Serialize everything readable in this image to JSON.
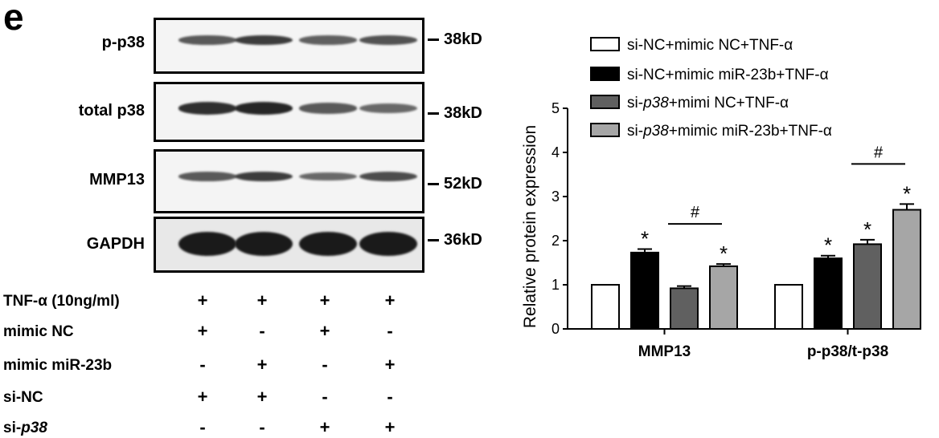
{
  "panel_label": "e",
  "blots": [
    {
      "name": "p-p38",
      "kd": "38kD",
      "intensities": [
        0.55,
        0.75,
        0.5,
        0.6
      ]
    },
    {
      "name": "total p38",
      "kd": "38kD",
      "intensities": [
        0.85,
        0.9,
        0.55,
        0.45
      ]
    },
    {
      "name": "MMP13",
      "kd": "52kD",
      "intensities": [
        0.55,
        0.75,
        0.45,
        0.65
      ]
    },
    {
      "name": "GAPDH",
      "kd": "36kD",
      "intensities": [
        1.0,
        1.0,
        1.0,
        1.0
      ]
    }
  ],
  "conditions": [
    {
      "label": "TNF-α (10ng/ml)",
      "values": [
        "+",
        "+",
        "+",
        "+"
      ]
    },
    {
      "label": "mimic NC",
      "values": [
        "+",
        "-",
        "+",
        "-"
      ]
    },
    {
      "label": "mimic miR-23b",
      "values": [
        "-",
        "+",
        "-",
        "+"
      ]
    },
    {
      "label": "si-NC",
      "values": [
        "+",
        "+",
        "-",
        "-"
      ]
    },
    {
      "label_prefix": "si-",
      "label_italic": "p38",
      "values": [
        "-",
        "-",
        "+",
        "+"
      ]
    }
  ],
  "chart_data": {
    "type": "bar",
    "categories": [
      "MMP13",
      "p-p38/t-p38"
    ],
    "ylabel": "Relative  protein expression",
    "ylim": [
      0,
      5
    ],
    "yticks": [
      "0",
      "1",
      "2",
      "3",
      "4",
      "5"
    ],
    "grid": false,
    "legend_position": "top",
    "series": [
      {
        "name": "si-NC+mimic NC+TNF-α",
        "color": "#ffffff",
        "values": [
          1.0,
          1.0
        ],
        "errors": [
          0,
          0
        ],
        "stars": [
          "",
          ""
        ]
      },
      {
        "name": "si-NC+mimic miR-23b+TNF-α",
        "color": "#000000",
        "values": [
          1.73,
          1.6
        ],
        "errors": [
          0.08,
          0.06
        ],
        "stars": [
          "*",
          "*"
        ]
      },
      {
        "name": "si-p38+mimi NC+TNF-α",
        "color": "#606060",
        "values": [
          0.92,
          1.92
        ],
        "errors": [
          0.05,
          0.1
        ],
        "stars": [
          "",
          "*"
        ]
      },
      {
        "name": "si-p38+mimic miR-23b+TNF-α",
        "color": "#a6a6a6",
        "values": [
          1.42,
          2.7
        ],
        "errors": [
          0.05,
          0.13
        ],
        "stars": [
          "*",
          "*"
        ]
      }
    ],
    "legend_labels": [
      {
        "prefix": "si-NC+mimic NC+TNF-α",
        "italic": "",
        "suffix": ""
      },
      {
        "prefix": "si-NC+mimic miR-23b+TNF-α",
        "italic": "",
        "suffix": ""
      },
      {
        "prefix": "si-",
        "italic": "p38",
        "suffix": "+mimi NC+TNF-α"
      },
      {
        "prefix": "si-",
        "italic": "p38",
        "suffix": "+mimic miR-23b+TNF-α"
      }
    ],
    "comparisons": [
      {
        "category": 0,
        "from_series": 2,
        "to_series": 3,
        "label": "#"
      },
      {
        "category": 1,
        "from_series": 2,
        "to_series": 3,
        "label": "#"
      }
    ]
  }
}
